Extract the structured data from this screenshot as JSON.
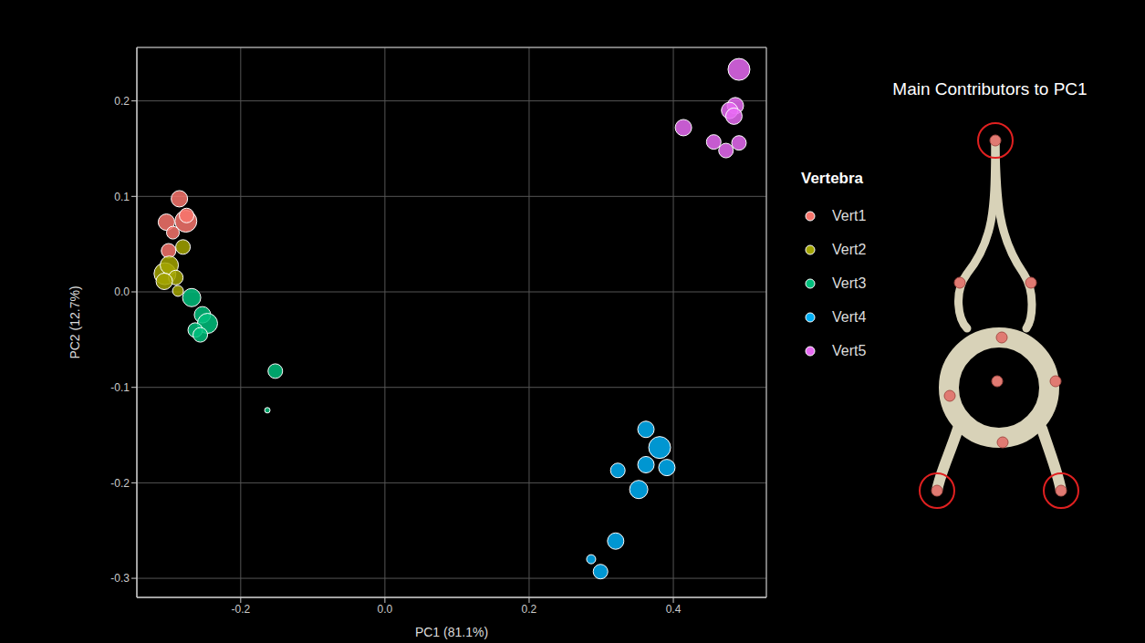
{
  "chart_data": {
    "type": "scatter",
    "x_label": "PC1 (81.1%)",
    "y_label": "PC2 (12.7%)",
    "xlim": [
      -0.344,
      0.529
    ],
    "ylim": [
      -0.32,
      0.256
    ],
    "xticks": [
      -0.2,
      {
        "value": 0,
        "label": "0.0"
      },
      0.2,
      0.4
    ],
    "yticks": [
      -0.3,
      -0.2,
      -0.1,
      {
        "value": 0,
        "label": "0.0"
      },
      0.1,
      0.2
    ],
    "grid": true,
    "legend": "right",
    "legend_title": "Vertebra",
    "annotations": [
      "Main Contributors to PC1"
    ],
    "series": [
      {
        "name": "Vert1",
        "color": "#F8766D",
        "x": [
          -0.285,
          -0.303,
          -0.276,
          -0.294,
          -0.3,
          -0.275
        ],
        "y": [
          0.0975,
          0.073,
          0.074,
          0.062,
          0.043,
          0.08
        ],
        "size": [
          9,
          9,
          12,
          7,
          8,
          8
        ]
      },
      {
        "name": "Vert2",
        "color": "#A3A500",
        "x": [
          -0.305,
          -0.299,
          -0.29,
          -0.28,
          -0.306,
          -0.287
        ],
        "y": [
          0.019,
          0.028,
          0.015,
          0.047,
          0.011,
          0.001
        ],
        "size": [
          12,
          10,
          8,
          8,
          9,
          6
        ]
      },
      {
        "name": "Vert3",
        "color": "#00BF7D",
        "x": [
          -0.268,
          -0.253,
          -0.246,
          -0.263,
          -0.256,
          -0.152,
          -0.163
        ],
        "y": [
          -0.006,
          -0.024,
          -0.033,
          -0.04,
          -0.045,
          -0.083,
          -0.124
        ],
        "size": [
          10,
          9,
          11,
          8,
          8,
          8,
          3
        ]
      },
      {
        "name": "Vert4",
        "color": "#00B0F6",
        "x": [
          0.362,
          0.381,
          0.362,
          0.391,
          0.323,
          0.352,
          0.32,
          0.286,
          0.299
        ],
        "y": [
          -0.144,
          -0.163,
          -0.181,
          -0.184,
          -0.187,
          -0.207,
          -0.261,
          -0.28,
          -0.293
        ],
        "size": [
          9,
          12,
          9,
          9,
          8,
          10,
          9,
          5,
          8
        ]
      },
      {
        "name": "Vert5",
        "color": "#E76BF3",
        "x": [
          0.491,
          0.486,
          0.478,
          0.484,
          0.414,
          0.456,
          0.491,
          0.473
        ],
        "y": [
          0.233,
          0.195,
          0.19,
          0.184,
          0.172,
          0.157,
          0.156,
          0.148
        ],
        "size": [
          12,
          9,
          9,
          9,
          9,
          8,
          8,
          8
        ]
      }
    ]
  }
}
